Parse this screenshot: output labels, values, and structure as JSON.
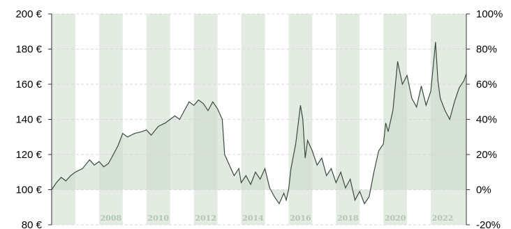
{
  "colors": {
    "band": "#e3ebe3",
    "gap": "#ffffff",
    "line": "#3b4a3f",
    "fill": "#c9d8c9",
    "grid": "#d8d8d8",
    "year_label": "#b3c6b3"
  },
  "chart_data": {
    "type": "line",
    "y_left": {
      "ticks": [
        "200 €",
        "180 €",
        "160 €",
        "140 €",
        "120 €",
        "100 €",
        "80 €"
      ],
      "ylim": [
        80,
        200
      ]
    },
    "y_right": {
      "ticks": [
        "100%",
        "80%",
        "60%",
        "40%",
        "20%",
        "0%",
        "-20%"
      ],
      "ylim": [
        -20,
        100
      ]
    },
    "x_labels": [
      {
        "label": "2008",
        "x": 2008
      },
      {
        "label": "2010",
        "x": 2010
      },
      {
        "label": "2012",
        "x": 2012
      },
      {
        "label": "2014",
        "x": 2014
      },
      {
        "label": "2016",
        "x": 2016
      },
      {
        "label": "2018",
        "x": 2018
      },
      {
        "label": "2020",
        "x": 2020
      },
      {
        "label": "2022",
        "x": 2022
      }
    ],
    "xlim": [
      2006,
      2023.5
    ],
    "bands": [
      [
        2006,
        2007
      ],
      [
        2008,
        2009
      ],
      [
        2010,
        2011
      ],
      [
        2012,
        2013
      ],
      [
        2014,
        2015
      ],
      [
        2016,
        2017
      ],
      [
        2018,
        2019
      ],
      [
        2020,
        2021
      ],
      [
        2022,
        2023.5
      ]
    ],
    "baseline": 100,
    "series": [
      {
        "points": [
          [
            2006.0,
            100
          ],
          [
            2006.2,
            104
          ],
          [
            2006.4,
            107
          ],
          [
            2006.6,
            105
          ],
          [
            2006.8,
            108
          ],
          [
            2007.0,
            110
          ],
          [
            2007.3,
            112
          ],
          [
            2007.6,
            117
          ],
          [
            2007.8,
            114
          ],
          [
            2008.0,
            116
          ],
          [
            2008.2,
            113
          ],
          [
            2008.4,
            115
          ],
          [
            2008.6,
            120
          ],
          [
            2008.8,
            125
          ],
          [
            2009.0,
            132
          ],
          [
            2009.2,
            130
          ],
          [
            2009.5,
            132
          ],
          [
            2009.8,
            133
          ],
          [
            2010.0,
            134
          ],
          [
            2010.2,
            131
          ],
          [
            2010.5,
            136
          ],
          [
            2010.8,
            138
          ],
          [
            2011.0,
            140
          ],
          [
            2011.2,
            142
          ],
          [
            2011.4,
            140
          ],
          [
            2011.6,
            145
          ],
          [
            2011.8,
            150
          ],
          [
            2012.0,
            148
          ],
          [
            2012.2,
            151
          ],
          [
            2012.4,
            149
          ],
          [
            2012.6,
            145
          ],
          [
            2012.8,
            150
          ],
          [
            2013.0,
            146
          ],
          [
            2013.2,
            140
          ],
          [
            2013.3,
            120
          ],
          [
            2013.5,
            114
          ],
          [
            2013.7,
            108
          ],
          [
            2013.9,
            112
          ],
          [
            2014.0,
            104
          ],
          [
            2014.2,
            108
          ],
          [
            2014.4,
            103
          ],
          [
            2014.6,
            110
          ],
          [
            2014.8,
            106
          ],
          [
            2015.0,
            112
          ],
          [
            2015.2,
            101
          ],
          [
            2015.4,
            96
          ],
          [
            2015.6,
            92
          ],
          [
            2015.8,
            98
          ],
          [
            2015.9,
            94
          ],
          [
            2016.0,
            100
          ],
          [
            2016.1,
            112
          ],
          [
            2016.3,
            126
          ],
          [
            2016.5,
            148
          ],
          [
            2016.6,
            140
          ],
          [
            2016.7,
            118
          ],
          [
            2016.8,
            128
          ],
          [
            2017.0,
            122
          ],
          [
            2017.2,
            114
          ],
          [
            2017.4,
            118
          ],
          [
            2017.6,
            108
          ],
          [
            2017.8,
            112
          ],
          [
            2018.0,
            104
          ],
          [
            2018.2,
            110
          ],
          [
            2018.4,
            101
          ],
          [
            2018.6,
            106
          ],
          [
            2018.8,
            94
          ],
          [
            2019.0,
            99
          ],
          [
            2019.2,
            92
          ],
          [
            2019.4,
            96
          ],
          [
            2019.6,
            110
          ],
          [
            2019.8,
            122
          ],
          [
            2020.0,
            126
          ],
          [
            2020.1,
            138
          ],
          [
            2020.2,
            133
          ],
          [
            2020.4,
            145
          ],
          [
            2020.6,
            173
          ],
          [
            2020.8,
            160
          ],
          [
            2021.0,
            165
          ],
          [
            2021.2,
            152
          ],
          [
            2021.4,
            147
          ],
          [
            2021.6,
            159
          ],
          [
            2021.8,
            148
          ],
          [
            2022.0,
            156
          ],
          [
            2022.2,
            184
          ],
          [
            2022.3,
            162
          ],
          [
            2022.4,
            152
          ],
          [
            2022.6,
            145
          ],
          [
            2022.8,
            140
          ],
          [
            2023.0,
            150
          ],
          [
            2023.2,
            158
          ],
          [
            2023.4,
            162
          ],
          [
            2023.5,
            166
          ]
        ]
      }
    ]
  }
}
